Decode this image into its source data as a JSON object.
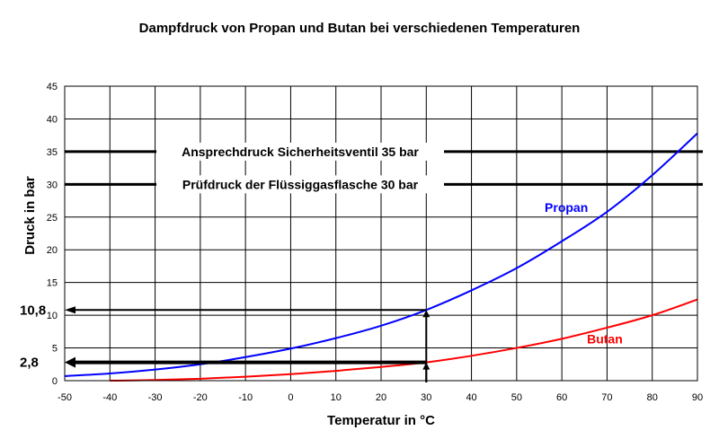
{
  "chart_data": {
    "type": "line",
    "title": "Dampfdruck von Propan und Butan bei verschiedenen Temperaturen",
    "xlabel": "Temperatur in °C",
    "ylabel": "Druck in bar",
    "xlim": [
      -50,
      90
    ],
    "ylim": [
      0,
      45
    ],
    "x_ticks": [
      -50,
      -40,
      -30,
      -20,
      -10,
      0,
      10,
      20,
      30,
      40,
      50,
      60,
      70,
      80,
      90
    ],
    "y_ticks": [
      0,
      5,
      10,
      15,
      20,
      25,
      30,
      35,
      40,
      45
    ],
    "grid": true,
    "series": [
      {
        "name": "Propan",
        "color": "#0000ff",
        "x": [
          -50,
          -40,
          -30,
          -20,
          -10,
          0,
          10,
          20,
          30,
          40,
          50,
          60,
          70,
          80,
          90
        ],
        "y": [
          0.7,
          1.1,
          1.7,
          2.5,
          3.6,
          4.9,
          6.5,
          8.4,
          10.8,
          13.8,
          17.2,
          21.3,
          25.8,
          31.4,
          37.8
        ]
      },
      {
        "name": "Butan",
        "color": "#ff0000",
        "x": [
          -40,
          -30,
          -20,
          -10,
          0,
          10,
          20,
          30,
          40,
          50,
          60,
          70,
          80,
          90
        ],
        "y": [
          0,
          0.1,
          0.3,
          0.6,
          1.0,
          1.5,
          2.1,
          2.8,
          3.8,
          5.0,
          6.4,
          8.1,
          10.0,
          12.4
        ]
      }
    ],
    "reference_lines": [
      {
        "y": 35,
        "label": "Ansprechdruck Sicherheitsventil 35 bar"
      },
      {
        "y": 30,
        "label": "Prüfdruck der Flüssiggasflasche 30 bar"
      }
    ],
    "callouts": [
      {
        "x": 30,
        "y": 10.8,
        "label": "10,8"
      },
      {
        "x": 30,
        "y": 2.8,
        "label": "2,8"
      }
    ]
  }
}
